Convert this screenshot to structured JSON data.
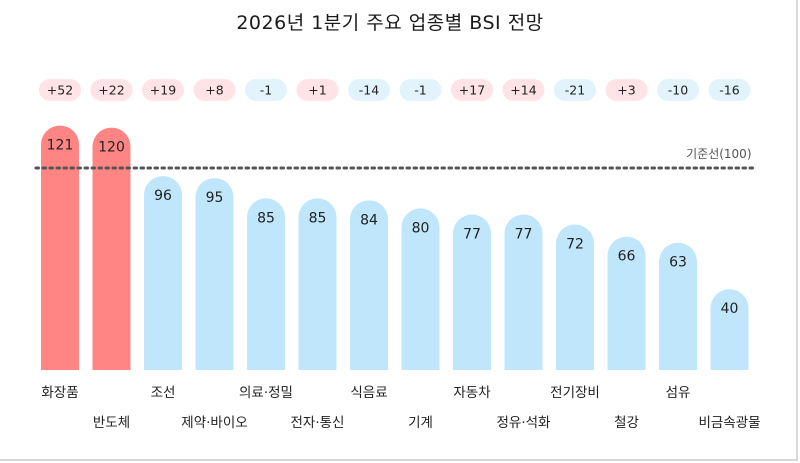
{
  "chart_data": {
    "type": "bar",
    "title": "2026년 1분기 주요 업종별 BSI 전망",
    "categories": [
      "화장품",
      "반도체",
      "조선",
      "제약·바이오",
      "의료·정밀",
      "전자·통신",
      "식음료",
      "기계",
      "자동차",
      "정유·석화",
      "전기장비",
      "철강",
      "섬유",
      "비금속광물"
    ],
    "values": [
      121,
      120,
      96,
      95,
      85,
      85,
      84,
      80,
      77,
      77,
      72,
      66,
      63,
      40
    ],
    "value_labels": [
      "121",
      "120",
      "96",
      "95",
      "85",
      "85",
      "84",
      "80",
      "77",
      "77",
      "72",
      "66",
      "63",
      "40"
    ],
    "changes": [
      "+52",
      "+22",
      "+19",
      "+8",
      "-1",
      "+1",
      "-14",
      "-1",
      "+17",
      "+14",
      "-21",
      "+3",
      "-10",
      "-16"
    ],
    "reference": {
      "value": 100,
      "label": "기준선(100)"
    },
    "colors": {
      "above": "#ff8585",
      "below": "#bfe6fb",
      "change_positive_bg": "#ffe3e6",
      "change_negative_bg": "#e2f3fc",
      "reference_line": "#555555"
    }
  }
}
